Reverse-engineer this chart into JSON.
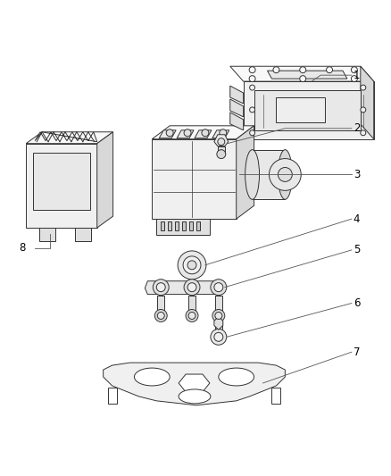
{
  "background_color": "#ffffff",
  "line_color": "#333333",
  "label_color": "#000000",
  "label_fs": 8.5,
  "lw": 0.7,
  "fig_w": 4.38,
  "fig_h": 5.33,
  "dpi": 100
}
